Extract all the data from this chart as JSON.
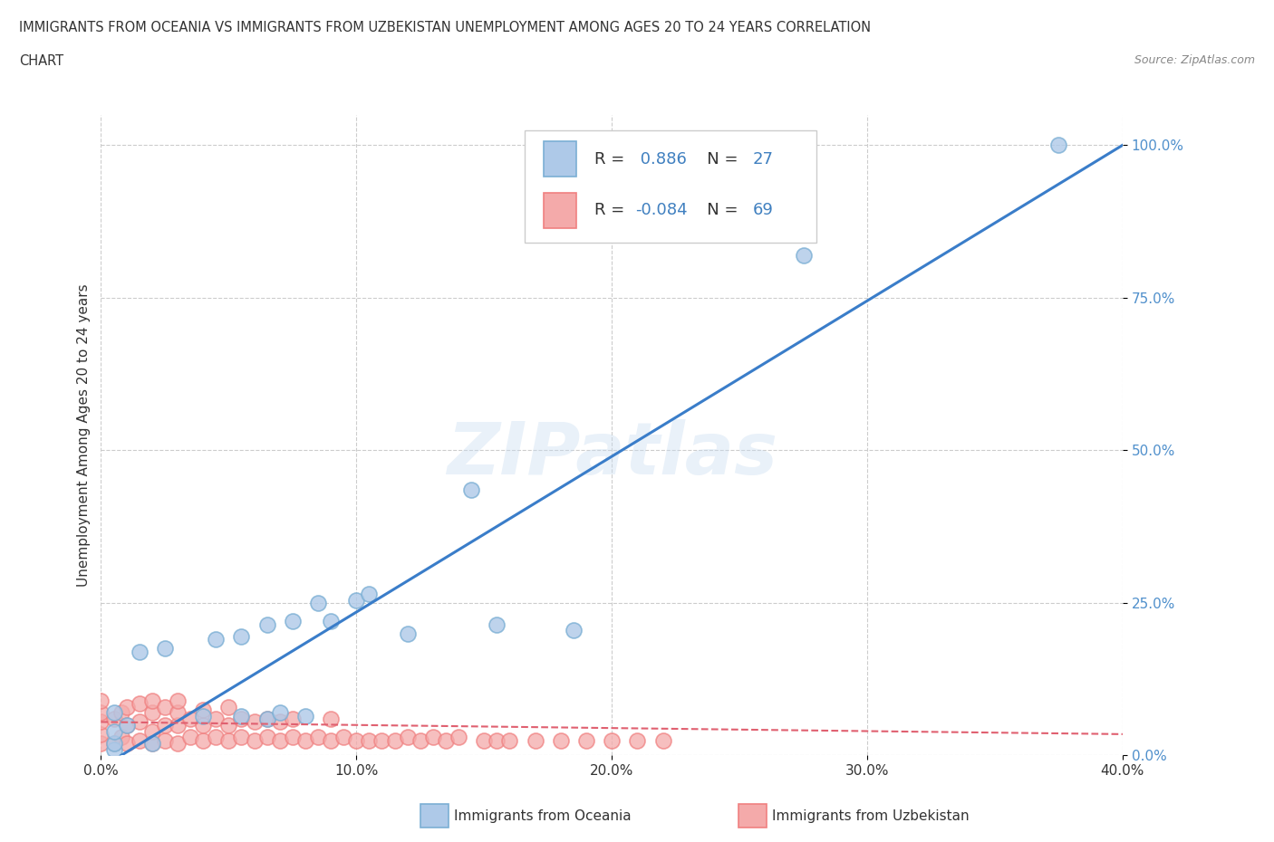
{
  "title_line1": "IMMIGRANTS FROM OCEANIA VS IMMIGRANTS FROM UZBEKISTAN UNEMPLOYMENT AMONG AGES 20 TO 24 YEARS CORRELATION",
  "title_line2": "CHART",
  "source_text": "Source: ZipAtlas.com",
  "ylabel": "Unemployment Among Ages 20 to 24 years",
  "xlim": [
    0.0,
    0.4
  ],
  "ylim": [
    0.0,
    1.05
  ],
  "xtick_labels": [
    "0.0%",
    "10.0%",
    "20.0%",
    "30.0%",
    "40.0%"
  ],
  "xtick_values": [
    0.0,
    0.1,
    0.2,
    0.3,
    0.4
  ],
  "ytick_labels": [
    "0.0%",
    "25.0%",
    "50.0%",
    "75.0%",
    "100.0%"
  ],
  "ytick_values": [
    0.0,
    0.25,
    0.5,
    0.75,
    1.0
  ],
  "oceania_color": "#7BAFD4",
  "oceania_face": "#AEC9E8",
  "uzbekistan_color": "#F08080",
  "uzbekistan_face": "#F4AAAA",
  "regression_oceania_color": "#3A7DC9",
  "regression_uzbekistan_color": "#E06070",
  "R_oceania": 0.886,
  "N_oceania": 27,
  "R_uzbekistan": -0.084,
  "N_uzbekistan": 69,
  "watermark": "ZIPatlas",
  "oceania_x": [
    0.005,
    0.005,
    0.005,
    0.005,
    0.01,
    0.015,
    0.02,
    0.025,
    0.04,
    0.045,
    0.055,
    0.055,
    0.065,
    0.065,
    0.07,
    0.075,
    0.08,
    0.085,
    0.09,
    0.1,
    0.105,
    0.12,
    0.145,
    0.155,
    0.185,
    0.275,
    0.375
  ],
  "oceania_y": [
    0.01,
    0.02,
    0.04,
    0.07,
    0.05,
    0.17,
    0.02,
    0.175,
    0.065,
    0.19,
    0.065,
    0.195,
    0.06,
    0.215,
    0.07,
    0.22,
    0.065,
    0.25,
    0.22,
    0.255,
    0.265,
    0.2,
    0.435,
    0.215,
    0.205,
    0.82,
    1.0
  ],
  "uzbekistan_x": [
    0.0,
    0.0,
    0.0,
    0.0,
    0.0,
    0.005,
    0.005,
    0.008,
    0.008,
    0.01,
    0.01,
    0.01,
    0.015,
    0.015,
    0.015,
    0.02,
    0.02,
    0.02,
    0.02,
    0.025,
    0.025,
    0.025,
    0.03,
    0.03,
    0.03,
    0.03,
    0.035,
    0.035,
    0.04,
    0.04,
    0.04,
    0.045,
    0.045,
    0.05,
    0.05,
    0.05,
    0.055,
    0.055,
    0.06,
    0.06,
    0.065,
    0.065,
    0.07,
    0.07,
    0.075,
    0.075,
    0.08,
    0.085,
    0.09,
    0.09,
    0.095,
    0.1,
    0.105,
    0.11,
    0.115,
    0.12,
    0.125,
    0.13,
    0.135,
    0.14,
    0.15,
    0.155,
    0.16,
    0.17,
    0.18,
    0.19,
    0.2,
    0.21,
    0.22
  ],
  "uzbekistan_y": [
    0.02,
    0.035,
    0.055,
    0.07,
    0.09,
    0.02,
    0.06,
    0.03,
    0.07,
    0.02,
    0.05,
    0.08,
    0.025,
    0.055,
    0.085,
    0.02,
    0.04,
    0.07,
    0.09,
    0.025,
    0.05,
    0.08,
    0.02,
    0.05,
    0.07,
    0.09,
    0.03,
    0.06,
    0.025,
    0.05,
    0.075,
    0.03,
    0.06,
    0.025,
    0.05,
    0.08,
    0.03,
    0.06,
    0.025,
    0.055,
    0.03,
    0.06,
    0.025,
    0.055,
    0.03,
    0.06,
    0.025,
    0.03,
    0.025,
    0.06,
    0.03,
    0.025,
    0.025,
    0.025,
    0.025,
    0.03,
    0.025,
    0.03,
    0.025,
    0.03,
    0.025,
    0.025,
    0.025,
    0.025,
    0.025,
    0.025,
    0.025,
    0.025,
    0.025
  ],
  "background_color": "#FFFFFF",
  "grid_color": "#CCCCCC",
  "font_color": "#333333",
  "number_color": "#4080C0",
  "ytick_color": "#5090CC"
}
